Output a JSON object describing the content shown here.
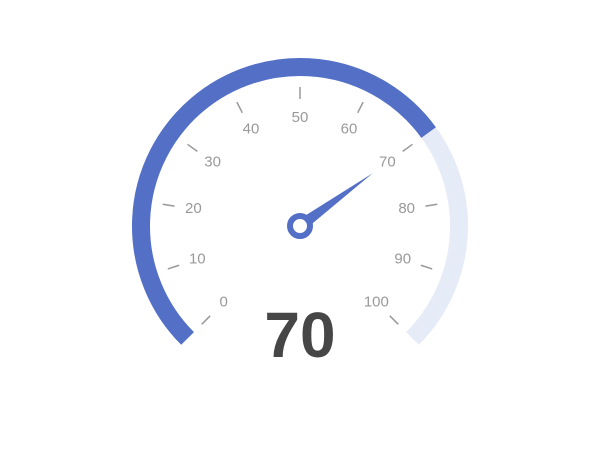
{
  "chart_data": {
    "type": "gauge",
    "title": "",
    "min": 0,
    "max": 100,
    "value": 70,
    "value_label": "70",
    "major_ticks": [
      0,
      10,
      20,
      30,
      40,
      50,
      60,
      70,
      80,
      90,
      100
    ],
    "tick_labels": [
      "0",
      "10",
      "20",
      "30",
      "40",
      "50",
      "60",
      "70",
      "80",
      "90",
      "100"
    ],
    "colors": {
      "progress": "#5470c6",
      "track": "#e6ebf8",
      "tick": "#999999",
      "label": "#999999",
      "value_text": "#464646",
      "pointer": "#5470c6"
    }
  }
}
